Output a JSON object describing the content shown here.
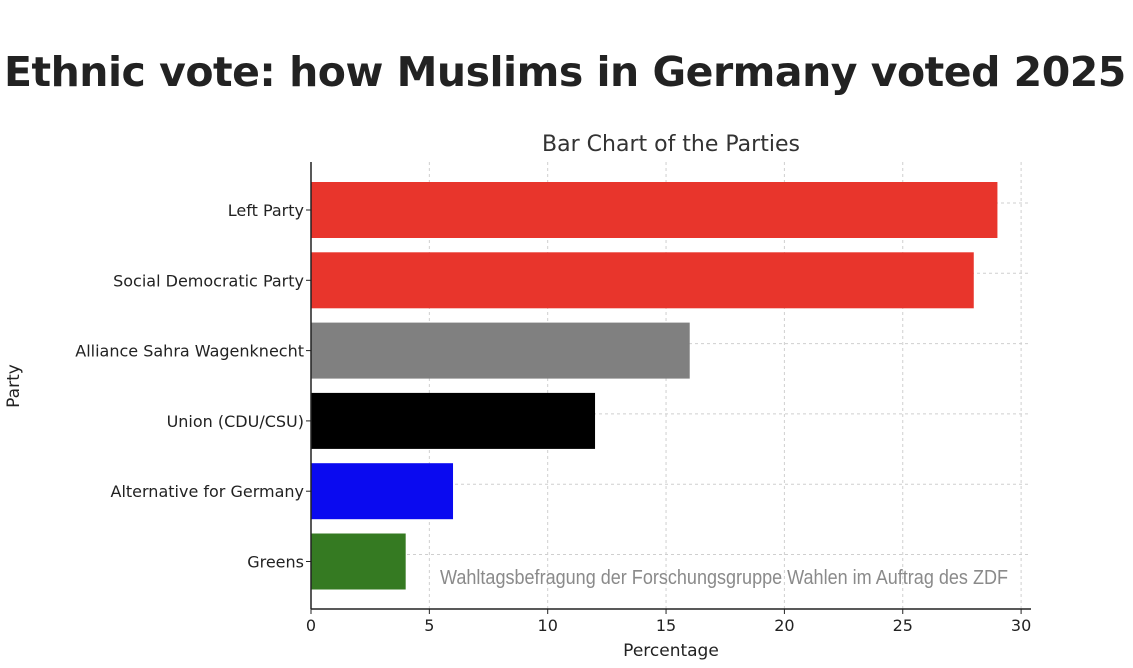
{
  "headline": "Ethnic vote: how Muslims in Germany voted 2025",
  "chart_data": {
    "type": "bar",
    "orientation": "horizontal",
    "title": "Bar Chart of the Parties",
    "xlabel": "Percentage",
    "ylabel": "Party",
    "xlim": [
      0,
      30
    ],
    "xticks": [
      0,
      5,
      10,
      15,
      20,
      25,
      30
    ],
    "grid": true,
    "categories": [
      "Left Party",
      "Social Democratic Party",
      "Alliance Sahra Wagenknecht",
      "Union (CDU/CSU)",
      "Alternative for Germany",
      "Greens"
    ],
    "values": [
      29,
      28,
      16,
      12,
      6,
      4
    ],
    "colors": [
      "#e8352c",
      "#e8352c",
      "#808080",
      "#000000",
      "#0a0af0",
      "#357a22"
    ],
    "annotation": "Wahltagsbefragung der Forschungsgruppe Wahlen im Auftrag des ZDF"
  }
}
